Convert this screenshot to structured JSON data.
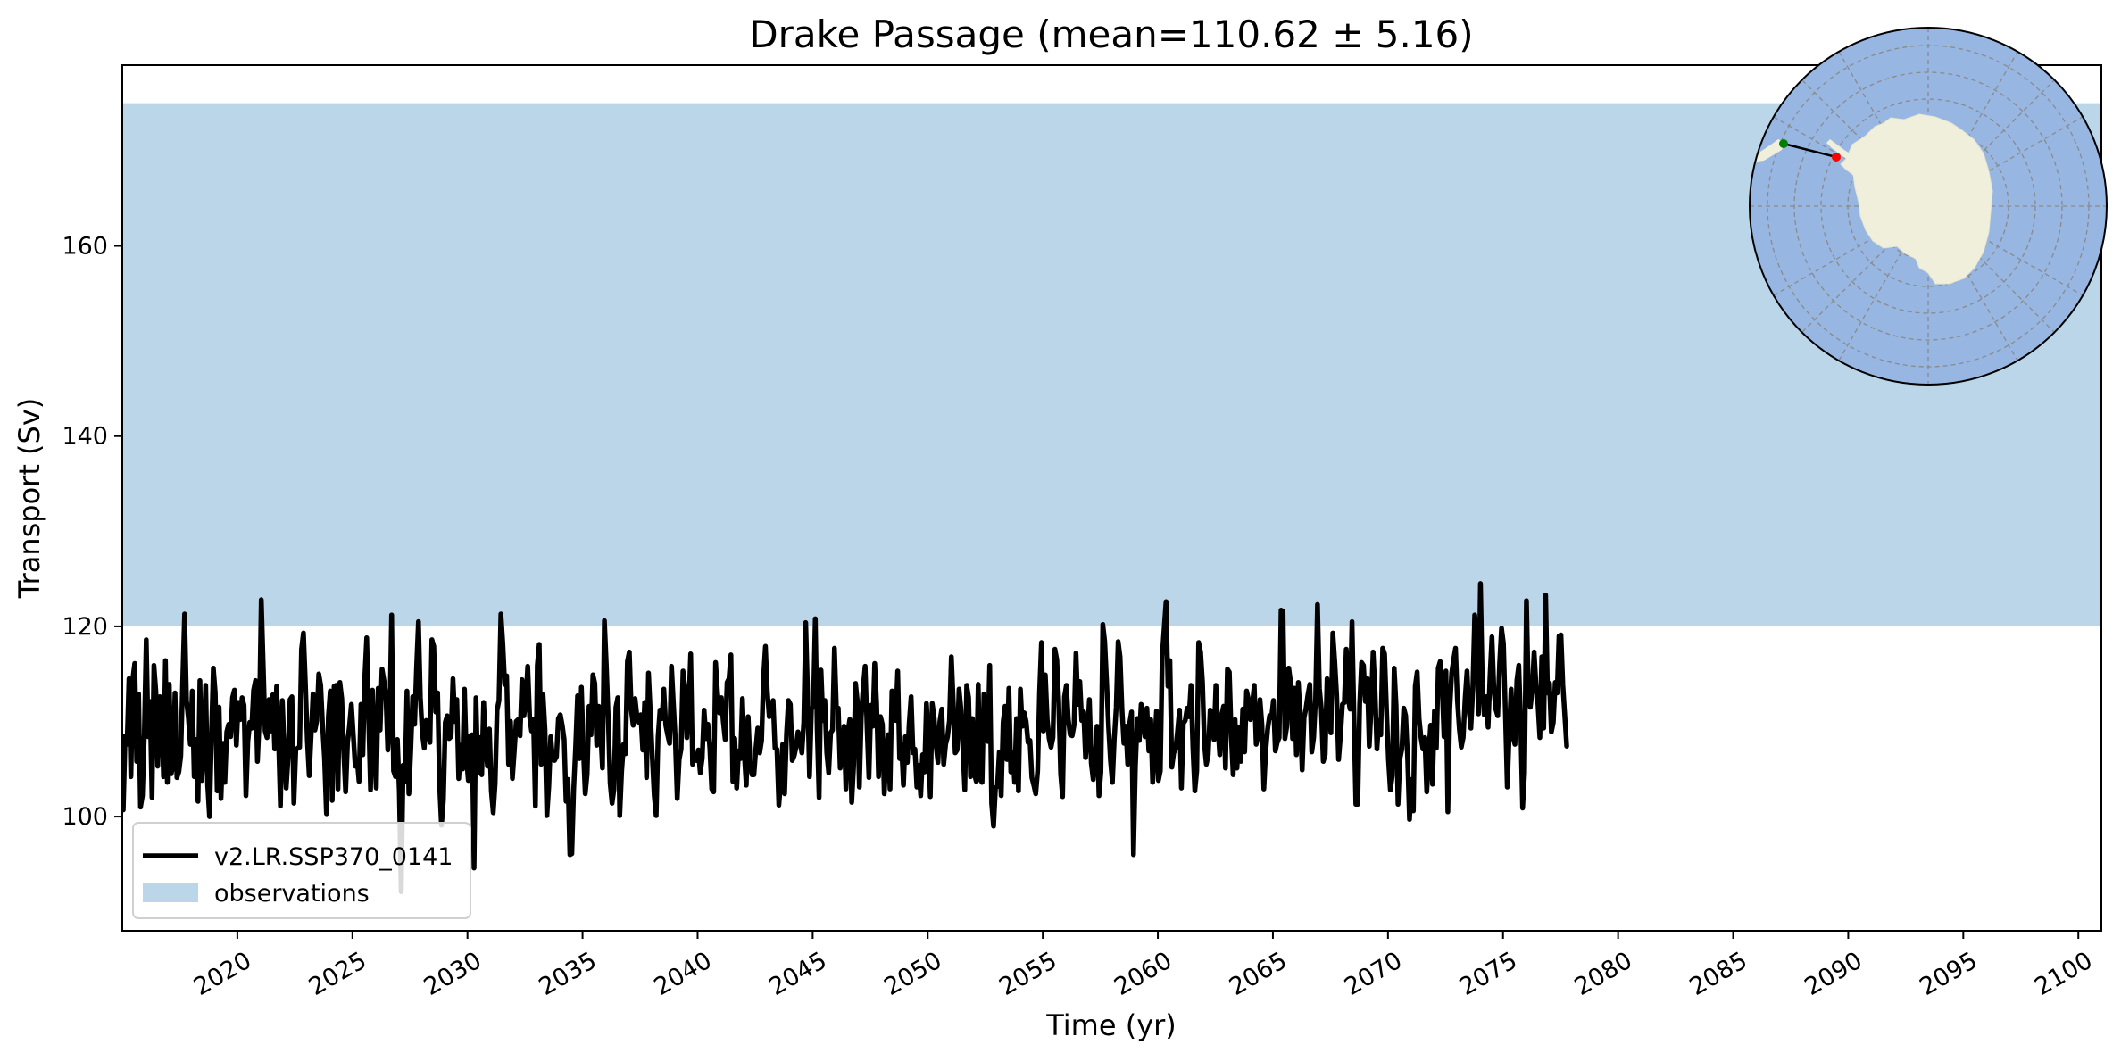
{
  "chart_data": {
    "type": "line",
    "title": "Drake Passage (mean=110.62 ± 5.16)",
    "xlabel": "Time (yr)",
    "ylabel": "Transport (Sv)",
    "xlim": [
      2015,
      2101
    ],
    "ylim": [
      88,
      179
    ],
    "x_ticks": [
      2020,
      2025,
      2030,
      2035,
      2040,
      2045,
      2050,
      2055,
      2060,
      2065,
      2070,
      2075,
      2080,
      2085,
      2090,
      2095,
      2100
    ],
    "y_ticks": [
      100,
      120,
      140,
      160
    ],
    "grid": false,
    "legend_position": "lower-left",
    "observations": {
      "label": "observations",
      "y_min": 120,
      "y_max": 175,
      "color": "#bad6e8"
    },
    "series": [
      {
        "name": "v2.LR.SSP370_0141",
        "color": "#000000",
        "x_start": 2015.0417,
        "x_step": 0.0833,
        "values": [
          100.7,
          108.5,
          107.6,
          114.5,
          104.2,
          114.5,
          116.1,
          105.8,
          112.9,
          101.0,
          102.2,
          108.7,
          118.6,
          108.4,
          112.1,
          102.0,
          115.9,
          113.2,
          105.3,
          112.6,
          111.8,
          104.2,
          116.4,
          103.6,
          113.9,
          104.5,
          105.4,
          113.0,
          104.1,
          104.7,
          106.4,
          114.2,
          121.3,
          112.2,
          110.3,
          107.6,
          113.2,
          104.2,
          108.1,
          101.6,
          114.3,
          103.8,
          107.4,
          113.8,
          103.4,
          100.0,
          108.5,
          115.6,
          113.0,
          102.7,
          111.5,
          101.9,
          107.7,
          103.6,
          108.9,
          109.7,
          108.4,
          112.5,
          113.3,
          107.5,
          112.0,
          110.2,
          112.5,
          111.7,
          102.2,
          107.9,
          109.9,
          109.3,
          113.3,
          114.3,
          105.8,
          110.3,
          122.8,
          116.0,
          109.0,
          108.3,
          112.3,
          109.0,
          112.8,
          107.1,
          113.7,
          108.1,
          101.1,
          112.2,
          106.8,
          103.0,
          106.2,
          112.3,
          112.6,
          101.4,
          107.0,
          107.2,
          107.3,
          117.6,
          119.3,
          114.1,
          108.1,
          104.3,
          108.5,
          112.9,
          109.1,
          110.1,
          115.0,
          113.8,
          109.5,
          106.1,
          100.3,
          110.5,
          113.2,
          101.7,
          113.7,
          113.8,
          102.9,
          114.1,
          112.4,
          106.8,
          102.6,
          107.8,
          109.5,
          111.8,
          108.6,
          105.3,
          106.0,
          103.7,
          111.8,
          106.5,
          114.7,
          118.8,
          110.6,
          102.8,
          113.3,
          107.1,
          103.0,
          113.5,
          109.1,
          115.5,
          114.3,
          112.9,
          107.0,
          109.9,
          121.2,
          104.8,
          104.2,
          108.1,
          102.7,
          92.1,
          105.4,
          103.7,
          113.2,
          102.4,
          107.1,
          112.6,
          109.7,
          115.7,
          120.5,
          112.5,
          108.8,
          107.2,
          110.1,
          109.1,
          107.8,
          118.6,
          117.9,
          111.0,
          113.0,
          103.3,
          99.1,
          101.7,
          109.9,
          110.6,
          108.2,
          108.4,
          114.5,
          110.0,
          112.3,
          104.0,
          107.5,
          105.0,
          113.4,
          106.3,
          103.8,
          108.5,
          108.6,
          94.6,
          112.5,
          104.6,
          108.3,
          104.4,
          112.0,
          107.6,
          105.3,
          109.2,
          102.7,
          100.4,
          103.5,
          111.2,
          112.2,
          121.3,
          118.2,
          113.9,
          114.8,
          105.5,
          110.0,
          104.0,
          106.9,
          110.0,
          110.2,
          108.5,
          114.4,
          110.6,
          112.1,
          115.8,
          110.5,
          109.0,
          110.2,
          101.1,
          115.9,
          118.1,
          105.5,
          112.8,
          109.2,
          100.1,
          103.2,
          108.4,
          106.0,
          105.9,
          106.3,
          110.3,
          110.7,
          109.6,
          108.1,
          101.6,
          103.9,
          96.0,
          96.1,
          103.0,
          107.4,
          112.7,
          106.1,
          113.6,
          107.1,
          102.4,
          104.5,
          111.6,
          108.6,
          114.9,
          114.0,
          107.5,
          111.6,
          109.1,
          105.1,
          120.6,
          115.9,
          110.4,
          103.5,
          101.4,
          102.9,
          111.5,
          112.5,
          100.1,
          104.8,
          107.6,
          106.6,
          116.3,
          117.3,
          111.3,
          109.6,
          112.4,
          110.5,
          109.9,
          110.7,
          107.0,
          112.0,
          104.1,
          115.1,
          110.8,
          106.2,
          102.2,
          100.1,
          108.4,
          111.2,
          110.3,
          113.4,
          109.6,
          108.6,
          107.7,
          115.8,
          111.9,
          108.1,
          101.9,
          106.0,
          107.1,
          115.3,
          113.5,
          108.3,
          111.4,
          117.1,
          105.5,
          106.3,
          105.9,
          107.0,
          104.6,
          106.1,
          111.2,
          108.2,
          109.7,
          107.2,
          102.9,
          102.6,
          116.2,
          113.0,
          110.9,
          112.5,
          110.0,
          108.1,
          114.1,
          114.5,
          117.0,
          103.7,
          108.2,
          103.0,
          106.9,
          106.1,
          112.4,
          106.5,
          103.3,
          110.5,
          105.5,
          104.4,
          104.4,
          107.1,
          109.3,
          106.7,
          108.0,
          114.7,
          117.9,
          113.1,
          110.5,
          111.2,
          112.2,
          107.2,
          107.1,
          101.2,
          103.7,
          107.6,
          102.4,
          108.7,
          112.2,
          111.8,
          105.9,
          106.4,
          107.3,
          108.9,
          108.1,
          106.7,
          109.9,
          120.4,
          113.0,
          104.2,
          111.3,
          111.6,
          120.8,
          109.2,
          102.0,
          115.4,
          110.1,
          112.2,
          106.7,
          104.6,
          108.8,
          109.1,
          117.7,
          111.5,
          111.4,
          105.1,
          106.4,
          109.5,
          102.9,
          108.8,
          110.2,
          101.5,
          105.3,
          114.0,
          112.0,
          103.1,
          110.5,
          113.6,
          115.8,
          109.5,
          104.1,
          111.7,
          109.5,
          116.1,
          111.9,
          104.2,
          110.5,
          109.7,
          102.4,
          106.7,
          108.6,
          102.9,
          113.2,
          111.3,
          110.1,
          115.3,
          106.1,
          107.6,
          103.3,
          108.4,
          105.7,
          109.8,
          112.6,
          106.7,
          107.1,
          103.1,
          105.4,
          102.2,
          106.5,
          104.7,
          111.9,
          108.4,
          102.1,
          111.9,
          110.4,
          107.5,
          105.7,
          110.0,
          111.3,
          105.5,
          107.6,
          108.4,
          110.1,
          116.8,
          111.9,
          106.7,
          107.0,
          113.4,
          111.3,
          107.2,
          102.8,
          113.8,
          112.5,
          104.2,
          110.3,
          104.5,
          103.7,
          113.9,
          104.0,
          103.6,
          112.9,
          109.7,
          107.9,
          115.9,
          101.4,
          99.0,
          103.0,
          103.2,
          106.8,
          102.2,
          109.9,
          111.6,
          106.0,
          113.5,
          104.7,
          106.8,
          103.6,
          110.3,
          102.7,
          113.4,
          109.5,
          110.9,
          110.0,
          107.8,
          108.0,
          104.1,
          103.3,
          102.4,
          104.8,
          113.1,
          118.3,
          109.0,
          114.9,
          110.2,
          108.2,
          107.3,
          108.3,
          117.6,
          116.5,
          112.1,
          104.5,
          102.1,
          112.6,
          113.8,
          110.2,
          108.6,
          108.5,
          109.6,
          117.2,
          111.8,
          114.2,
          110.1,
          111.0,
          106.2,
          108.5,
          112.3,
          105.6,
          103.9,
          106.2,
          109.5,
          102.2,
          104.7,
          120.2,
          118.4,
          114.1,
          109.4,
          105.9,
          103.6,
          108.2,
          111.5,
          118.4,
          116.8,
          111.3,
          107.7,
          109.5,
          105.5,
          109.8,
          111.0,
          96.0,
          105.3,
          110.3,
          108.0,
          111.8,
          110.2,
          108.4,
          111.4,
          106.9,
          110.2,
          103.6,
          107.3,
          111.1,
          103.8,
          104.8,
          116.9,
          119.8,
          122.6,
          113.7,
          116.4,
          105.2,
          106.7,
          107.1,
          109.0,
          111.2,
          103.0,
          109.8,
          110.1,
          111.4,
          110.5,
          113.8,
          107.2,
          102.7,
          104.8,
          118.3,
          117.3,
          114.1,
          107.6,
          105.5,
          106.5,
          111.2,
          110.6,
          108.1,
          113.8,
          109.5,
          106.5,
          110.6,
          111.6,
          105.1,
          115.5,
          115.2,
          108.5,
          104.4,
          110.2,
          105.1,
          109.4,
          105.8,
          111.3,
          106.8,
          113.2,
          112.3,
          110.2,
          111.8,
          113.8,
          107.6,
          108.5,
          112.3,
          109.7,
          102.9,
          106.9,
          109.2,
          110.6,
          110.4,
          112.2,
          106.9,
          107.8,
          108.3,
          121.7,
          121.6,
          108.2,
          109.5,
          115.6,
          114.1,
          108.2,
          113.5,
          106.5,
          114.1,
          110.4,
          104.9,
          110.4,
          111.4,
          112.8,
          113.9,
          106.8,
          108.3,
          112.4,
          122.3,
          113.5,
          111.3,
          105.8,
          106.5,
          114.5,
          111.5,
          108.8,
          119.3,
          116.3,
          112.7,
          106.0,
          108.5,
          111.8,
          112.0,
          117.6,
          112.4,
          111.3,
          120.5,
          110.7,
          101.3,
          101.3,
          111.8,
          116.2,
          115.9,
          112.1,
          114.5,
          107.4,
          111.6,
          117.3,
          113.3,
          107.1,
          110.1,
          108.6,
          117.7,
          117.1,
          111.2,
          106.0,
          102.8,
          104.3,
          115.6,
          111.6,
          101.3,
          106.1,
          107.1,
          111.4,
          110.6,
          106.2,
          99.7,
          103.9,
          100.6,
          113.7,
          115.2,
          110.3,
          108.3,
          107.1,
          108.3,
          102.6,
          106.4,
          109.6,
          103.4,
          111.1,
          107.2,
          115.6,
          116.3,
          113.9,
          108.4,
          115.3,
          100.5,
          111.3,
          115.1,
          116.5,
          117.7,
          112.2,
          109.2,
          107.3,
          108.3,
          112.4,
          115.3,
          111.3,
          109.3,
          113.3,
          121.2,
          119.4,
          110.8,
          124.5,
          114.0,
          110.7,
          112.6,
          109.4,
          114.8,
          118.9,
          113.4,
          111.3,
          110.6,
          116.1,
          119.8,
          118.2,
          111.0,
          103.1,
          108.7,
          113.4,
          108.4,
          107.6,
          114.3,
          115.9,
          109.7,
          100.9,
          104.6,
          122.7,
          113.0,
          111.5,
          113.3,
          117.3,
          113.8,
          111.8,
          108.3,
          116.8,
          109.3,
          123.3,
          113.0,
          114.0,
          108.9,
          109.9,
          114.1,
          113.0,
          119.0,
          119.1,
          113.8,
          110.6,
          107.4
        ]
      }
    ]
  }
}
